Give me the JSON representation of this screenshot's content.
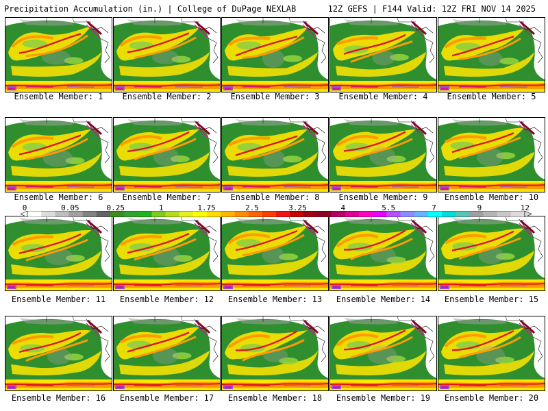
{
  "header": {
    "title": "Precipitation Accumulation (in.) | College of DuPage NEXLAB",
    "run": "12Z GEFS | F144 Valid: 12Z FRI NOV 14 2025"
  },
  "panels": [
    {
      "label": "Ensemble Member: 1"
    },
    {
      "label": "Ensemble Member: 2"
    },
    {
      "label": "Ensemble Member: 3"
    },
    {
      "label": "Ensemble Member: 4"
    },
    {
      "label": "Ensemble Member: 5"
    },
    {
      "label": "Ensemble Member: 6"
    },
    {
      "label": "Ensemble Member: 7"
    },
    {
      "label": "Ensemble Member: 8"
    },
    {
      "label": "Ensemble Member: 9"
    },
    {
      "label": "Ensemble Member: 10"
    },
    {
      "label": "Ensemble Member: 11"
    },
    {
      "label": "Ensemble Member: 12"
    },
    {
      "label": "Ensemble Member: 13"
    },
    {
      "label": "Ensemble Member: 14"
    },
    {
      "label": "Ensemble Member: 15"
    },
    {
      "label": "Ensemble Member: 16"
    },
    {
      "label": "Ensemble Member: 17"
    },
    {
      "label": "Ensemble Member: 18"
    },
    {
      "label": "Ensemble Member: 19"
    },
    {
      "label": "Ensemble Member: 20"
    }
  ],
  "colorbar": {
    "ticks": [
      "0",
      "0.05",
      "0.25",
      "1",
      "1.75",
      "2.5",
      "3.25",
      "4",
      "5.5",
      "7",
      "9",
      "12"
    ],
    "colors": [
      "#ffffff",
      "#dcdcdc",
      "#bebebe",
      "#a0a0a0",
      "#828282",
      "#646464",
      "#3c8c1e",
      "#2da52d",
      "#1eb41e",
      "#7ccd1e",
      "#b4dc1e",
      "#e6f01e",
      "#ffff00",
      "#ffdc00",
      "#ffb400",
      "#ff8c00",
      "#ff6400",
      "#ff3c00",
      "#f01414",
      "#c80000",
      "#a00014",
      "#8c0028",
      "#b40064",
      "#dc0096",
      "#ff00c8",
      "#e600ff",
      "#b450ff",
      "#8c8cff",
      "#64b4ff",
      "#00ffff",
      "#00dcdc",
      "#50c8b4",
      "#a0a0a0",
      "#b4b4b4",
      "#c8c8c8",
      "#dcdcdc"
    ]
  },
  "palette": {
    "ocean": "#2f8f2f",
    "land": "#ffffff",
    "light": "#8fcf3f",
    "yellow": "#ffe600",
    "orange": "#ff9a00",
    "red": "#e0141e",
    "darkred": "#8c0028",
    "magenta": "#d2149b",
    "purple": "#8c5adc",
    "gray": "#a0a0a0"
  }
}
